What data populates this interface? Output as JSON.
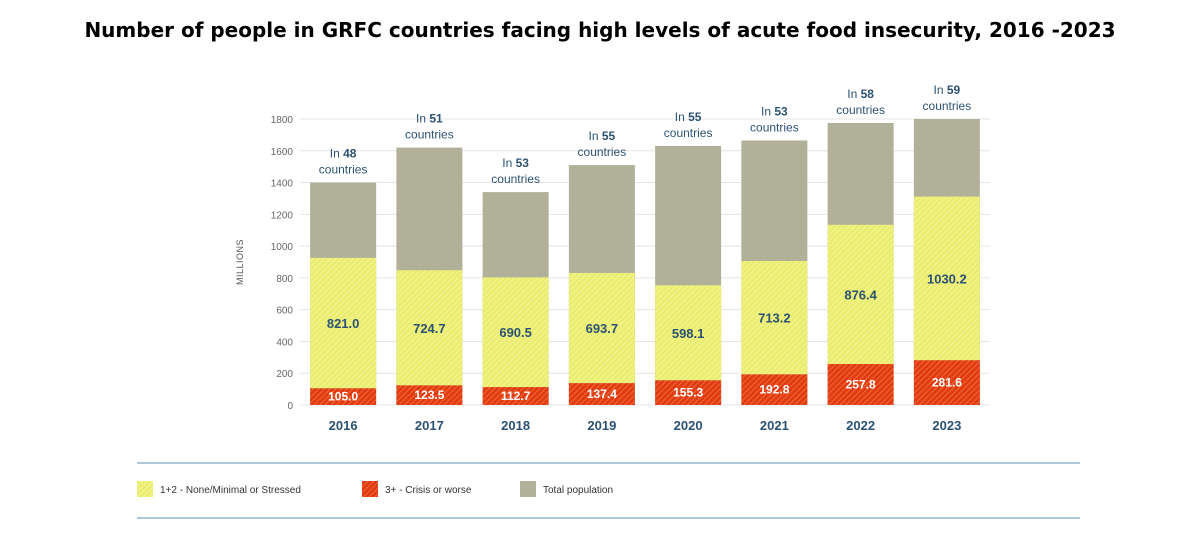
{
  "title": "Number of people in GRFC countries facing high levels of acute food insecurity, 2016 -2023",
  "chart_data": {
    "type": "bar",
    "categories": [
      "2016",
      "2017",
      "2018",
      "2019",
      "2020",
      "2021",
      "2022",
      "2023"
    ],
    "ylabel": "MILLIONS",
    "ylim": [
      0,
      1800
    ],
    "yticks": [
      0,
      200,
      400,
      600,
      800,
      1000,
      1200,
      1400,
      1600,
      1800
    ],
    "grid": true,
    "legend_position": "bottom",
    "series": [
      {
        "name": "Total population",
        "color": "#b1b19a",
        "values": [
          1400,
          1620,
          1340,
          1510,
          1630,
          1665,
          1775,
          1800
        ]
      },
      {
        "name": "1+2 - None/Minimal or Stressed",
        "color": "#eaed6e",
        "values": [
          821.0,
          724.7,
          690.5,
          693.7,
          598.1,
          713.2,
          876.4,
          1030.2
        ],
        "labels": [
          "821.0",
          "724.7",
          "690.5",
          "693.7",
          "598.1",
          "713.2",
          "876.4",
          "1030.2"
        ]
      },
      {
        "name": "3+ - Crisis or worse",
        "color": "#e23b14",
        "values": [
          105.0,
          123.5,
          112.7,
          137.4,
          155.3,
          192.8,
          257.8,
          281.6
        ],
        "labels": [
          "105.0",
          "123.5",
          "112.7",
          "137.4",
          "155.3",
          "192.8",
          "257.8",
          "281.6"
        ]
      }
    ],
    "annotations": [
      {
        "prefix": "In",
        "count": "48",
        "suffix": "countries"
      },
      {
        "prefix": "In",
        "count": "51",
        "suffix": "countries"
      },
      {
        "prefix": "In",
        "count": "53",
        "suffix": "countries"
      },
      {
        "prefix": "In",
        "count": "55",
        "suffix": "countries"
      },
      {
        "prefix": "In",
        "count": "55",
        "suffix": "countries"
      },
      {
        "prefix": "In",
        "count": "53",
        "suffix": "countries"
      },
      {
        "prefix": "In",
        "count": "58",
        "suffix": "countries"
      },
      {
        "prefix": "In",
        "count": "59",
        "suffix": "countries"
      }
    ],
    "legend": [
      {
        "label": "1+2 - None/Minimal or Stressed",
        "key": "stressed"
      },
      {
        "label": "3+ - Crisis or worse",
        "key": "crisis"
      },
      {
        "label": "Total population",
        "key": "total"
      }
    ],
    "colors": {
      "label_text": "#2c5273",
      "rule": "#7aa3c4",
      "grid": "#e4e4e4"
    }
  }
}
